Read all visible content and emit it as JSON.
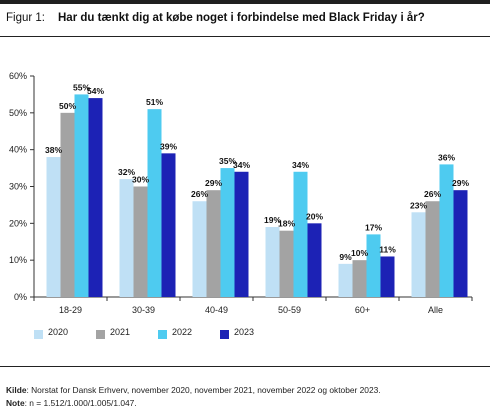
{
  "figure": {
    "label": "Figur 1:",
    "title": "Har du tænkt dig at købe noget i forbindelse med Black Friday i år?"
  },
  "notes": {
    "source_label": "Kilde",
    "source_text": ": Norstat for Dansk Erhverv, november 2020, november 2021, november 2022 og oktober 2023.",
    "note_label": "Note",
    "note_text": ": n = 1.512/1.000/1.005/1.047."
  },
  "chart_data": {
    "type": "bar",
    "categories": [
      "18-29",
      "30-39",
      "40-49",
      "50-59",
      "60+",
      "Alle"
    ],
    "series": [
      {
        "name": "2020",
        "color": "#bfe0f5",
        "values": [
          38,
          32,
          26,
          19,
          9,
          23
        ]
      },
      {
        "name": "2021",
        "color": "#a3a3a3",
        "values": [
          50,
          30,
          29,
          18,
          10,
          26
        ]
      },
      {
        "name": "2022",
        "color": "#4ecbf0",
        "values": [
          55,
          51,
          35,
          34,
          17,
          36
        ]
      },
      {
        "name": "2023",
        "color": "#1c22b5",
        "values": [
          54,
          39,
          34,
          20,
          11,
          29
        ]
      }
    ],
    "ylim": [
      0,
      60
    ],
    "yticks": [
      "0%",
      "10%",
      "20%",
      "30%",
      "40%",
      "50%",
      "60%"
    ],
    "value_suffix": "%",
    "grid": false,
    "legend_position": "bottom-left"
  }
}
